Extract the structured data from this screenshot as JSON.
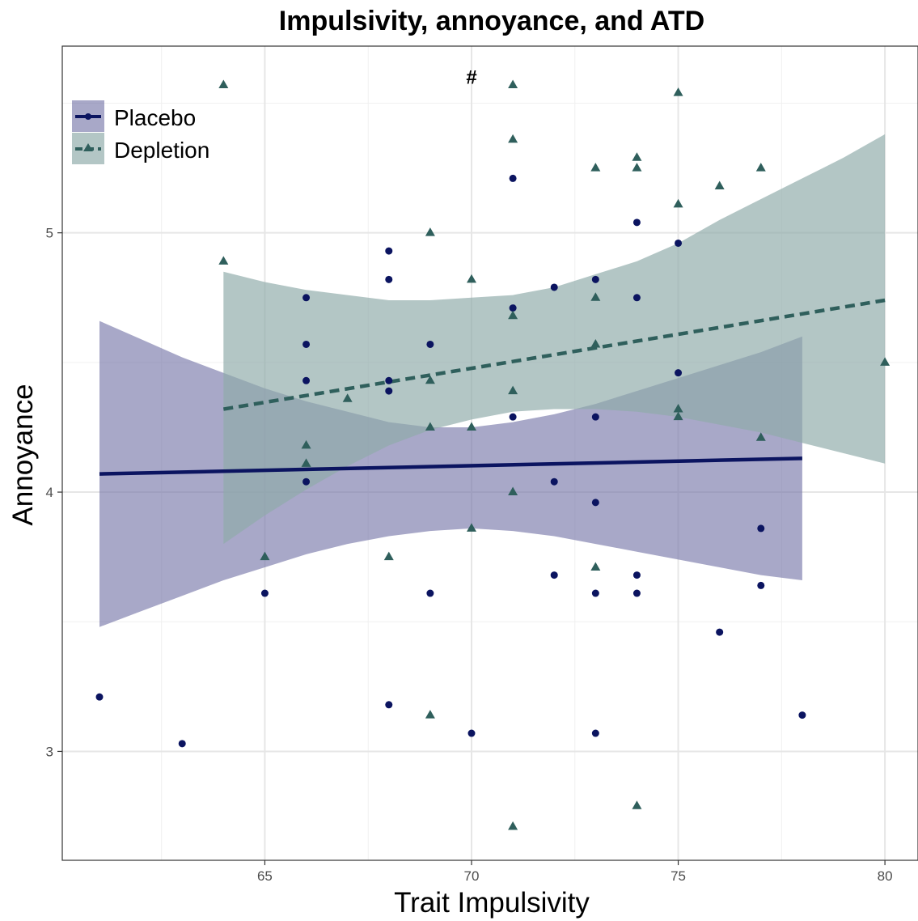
{
  "chart_data": {
    "type": "scatter",
    "title": "Impulsivity, annoyance, and ATD",
    "xlabel": "Trait Impulsivity",
    "ylabel": "Annoyance",
    "xlim": [
      60.1,
      80.8
    ],
    "ylim": [
      2.58,
      5.72
    ],
    "x_ticks": [
      65,
      70,
      75,
      80
    ],
    "y_ticks": [
      3,
      4,
      5
    ],
    "grid": true,
    "legend_position": "top-left",
    "annotation": {
      "text": "#",
      "x": 70,
      "y": 5.6
    },
    "series": [
      {
        "name": "Placebo",
        "color": "#0b1460",
        "ribbon_color": "#7272a6",
        "marker": "circle",
        "line_style": "solid",
        "points": [
          [
            61,
            3.21
          ],
          [
            63,
            3.03
          ],
          [
            65,
            3.61
          ],
          [
            66,
            4.75
          ],
          [
            66,
            4.57
          ],
          [
            66,
            4.43
          ],
          [
            66,
            4.04
          ],
          [
            68,
            4.93
          ],
          [
            68,
            4.82
          ],
          [
            68,
            4.43
          ],
          [
            68,
            4.39
          ],
          [
            68,
            3.18
          ],
          [
            69,
            4.57
          ],
          [
            69,
            3.61
          ],
          [
            70,
            3.07
          ],
          [
            71,
            5.21
          ],
          [
            71,
            4.71
          ],
          [
            71,
            4.29
          ],
          [
            72,
            4.79
          ],
          [
            72,
            4.04
          ],
          [
            72,
            3.68
          ],
          [
            73,
            4.82
          ],
          [
            73,
            4.29
          ],
          [
            73,
            3.96
          ],
          [
            73,
            3.61
          ],
          [
            73,
            3.07
          ],
          [
            74,
            5.04
          ],
          [
            74,
            4.75
          ],
          [
            74,
            3.68
          ],
          [
            74,
            3.61
          ],
          [
            75,
            4.96
          ],
          [
            75,
            4.46
          ],
          [
            76,
            3.46
          ],
          [
            77,
            3.86
          ],
          [
            77,
            3.64
          ],
          [
            78,
            3.14
          ]
        ],
        "fit": [
          [
            61,
            4.07
          ],
          [
            78,
            4.13
          ]
        ],
        "ci": [
          [
            61,
            3.48,
            4.66
          ],
          [
            62,
            3.54,
            4.59
          ],
          [
            63,
            3.6,
            4.52
          ],
          [
            64,
            3.66,
            4.46
          ],
          [
            65,
            3.71,
            4.4
          ],
          [
            66,
            3.76,
            4.35
          ],
          [
            67,
            3.8,
            4.31
          ],
          [
            68,
            3.83,
            4.27
          ],
          [
            69,
            3.85,
            4.25
          ],
          [
            70,
            3.86,
            4.25
          ],
          [
            71,
            3.85,
            4.27
          ],
          [
            72,
            3.83,
            4.3
          ],
          [
            73,
            3.8,
            4.34
          ],
          [
            74,
            3.77,
            4.39
          ],
          [
            75,
            3.74,
            4.44
          ],
          [
            76,
            3.71,
            4.49
          ],
          [
            77,
            3.68,
            4.54
          ],
          [
            78,
            3.66,
            4.6
          ]
        ]
      },
      {
        "name": "Depletion",
        "color": "#2f5f5c",
        "ribbon_color": "#8fabaa",
        "marker": "triangle",
        "line_style": "dashed",
        "points": [
          [
            64,
            5.57
          ],
          [
            64,
            4.89
          ],
          [
            65,
            3.75
          ],
          [
            66,
            4.18
          ],
          [
            66,
            4.11
          ],
          [
            67,
            4.36
          ],
          [
            68,
            3.75
          ],
          [
            69,
            5.0
          ],
          [
            69,
            4.43
          ],
          [
            69,
            4.25
          ],
          [
            69,
            3.14
          ],
          [
            70,
            4.82
          ],
          [
            70,
            4.25
          ],
          [
            70,
            3.86
          ],
          [
            71,
            5.57
          ],
          [
            71,
            5.36
          ],
          [
            71,
            4.68
          ],
          [
            71,
            4.39
          ],
          [
            71,
            4.0
          ],
          [
            71,
            2.71
          ],
          [
            73,
            5.25
          ],
          [
            73,
            4.75
          ],
          [
            73,
            4.57
          ],
          [
            73,
            3.71
          ],
          [
            74,
            5.29
          ],
          [
            74,
            5.25
          ],
          [
            74,
            2.79
          ],
          [
            75,
            5.54
          ],
          [
            75,
            5.11
          ],
          [
            75,
            4.32
          ],
          [
            75,
            4.29
          ],
          [
            76,
            5.18
          ],
          [
            77,
            5.25
          ],
          [
            77,
            4.21
          ],
          [
            80,
            4.5
          ]
        ],
        "fit": [
          [
            64,
            4.32
          ],
          [
            80,
            4.74
          ]
        ],
        "ci": [
          [
            64,
            3.8,
            4.85
          ],
          [
            65,
            3.91,
            4.81
          ],
          [
            66,
            4.01,
            4.78
          ],
          [
            67,
            4.1,
            4.76
          ],
          [
            68,
            4.18,
            4.74
          ],
          [
            69,
            4.24,
            4.74
          ],
          [
            70,
            4.28,
            4.75
          ],
          [
            71,
            4.31,
            4.76
          ],
          [
            72,
            4.32,
            4.79
          ],
          [
            73,
            4.32,
            4.84
          ],
          [
            74,
            4.31,
            4.89
          ],
          [
            75,
            4.29,
            4.96
          ],
          [
            76,
            4.26,
            5.05
          ],
          [
            77,
            4.23,
            5.13
          ],
          [
            78,
            4.19,
            5.21
          ],
          [
            79,
            4.15,
            5.29
          ],
          [
            80,
            4.11,
            5.38
          ]
        ]
      }
    ]
  }
}
